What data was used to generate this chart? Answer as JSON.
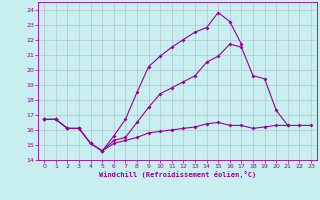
{
  "xlabel": "Windchill (Refroidissement éolien,°C)",
  "background_color": "#c8eef0",
  "grid_color": "#b0c8d0",
  "line_color": "#990099",
  "xlim": [
    -0.5,
    23.5
  ],
  "ylim": [
    14,
    24.5
  ],
  "xticks": [
    0,
    1,
    2,
    3,
    4,
    5,
    6,
    7,
    8,
    9,
    10,
    11,
    12,
    13,
    14,
    15,
    16,
    17,
    18,
    19,
    20,
    21,
    22,
    23
  ],
  "yticks": [
    14,
    15,
    16,
    17,
    18,
    19,
    20,
    21,
    22,
    23,
    24
  ],
  "line1_x": [
    0,
    1,
    2,
    3,
    4,
    5,
    6,
    7,
    8,
    9,
    10,
    11,
    12,
    13,
    14,
    15,
    16,
    17,
    18,
    19,
    20,
    21,
    22,
    23
  ],
  "line1_y": [
    16.7,
    16.7,
    16.1,
    16.1,
    15.1,
    14.6,
    15.1,
    15.3,
    15.5,
    15.8,
    15.9,
    16.0,
    16.1,
    16.2,
    16.4,
    16.5,
    16.3,
    16.3,
    16.1,
    16.2,
    16.3,
    16.3,
    16.3,
    16.3
  ],
  "line2_x": [
    0,
    1,
    2,
    3,
    4,
    5,
    6,
    7,
    8,
    9,
    10,
    11,
    12,
    13,
    14,
    15,
    16,
    17,
    18,
    19,
    20,
    21,
    22,
    23
  ],
  "line2_y": [
    16.7,
    16.7,
    16.1,
    16.1,
    15.1,
    14.6,
    15.3,
    15.5,
    16.5,
    17.5,
    18.4,
    18.8,
    19.2,
    19.6,
    20.5,
    20.9,
    21.7,
    21.5,
    19.6,
    19.4,
    17.3,
    16.3,
    null,
    null
  ],
  "line3_x": [
    0,
    1,
    2,
    3,
    4,
    5,
    6,
    7,
    8,
    9,
    10,
    11,
    12,
    13,
    14,
    15,
    16,
    17,
    18,
    19,
    20,
    21,
    22,
    23
  ],
  "line3_y": [
    16.7,
    16.7,
    16.1,
    16.1,
    15.1,
    14.6,
    15.6,
    16.7,
    18.5,
    20.2,
    20.9,
    21.5,
    22.0,
    22.5,
    22.8,
    23.8,
    23.2,
    21.7,
    null,
    null,
    null,
    null,
    null,
    null
  ]
}
